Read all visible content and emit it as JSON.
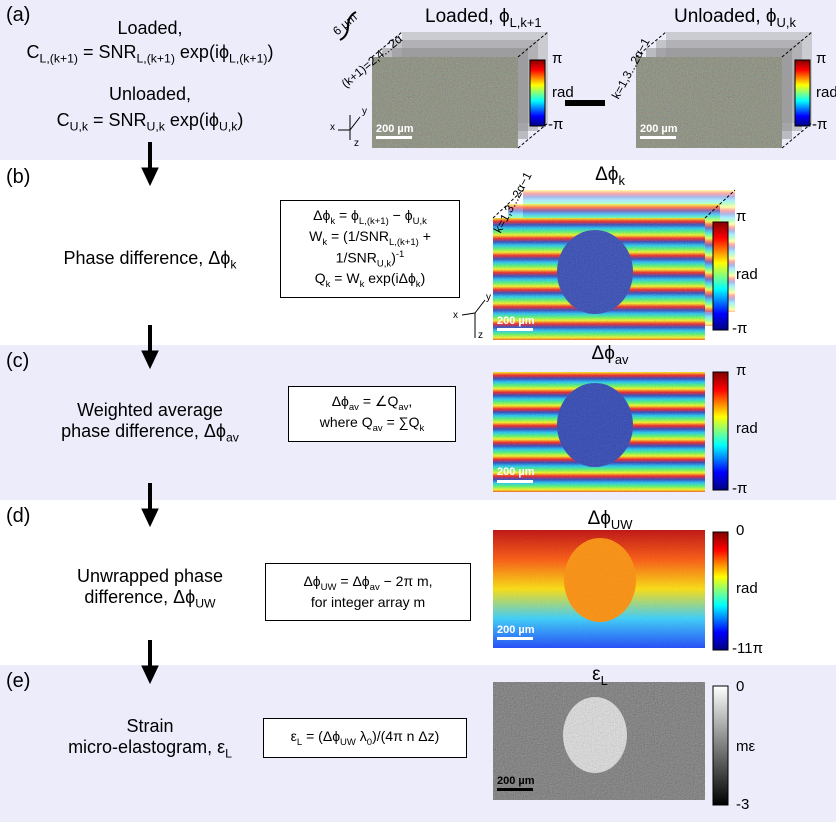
{
  "panel_a": {
    "label": "(a)",
    "loaded_label": "Loaded,",
    "loaded_eq": [
      "C",
      {
        "sub": "L,(k+1)"
      },
      " = SNR",
      {
        "sub": "L,(k+1)"
      },
      " exp(iϕ",
      {
        "sub": "L,(k+1)"
      },
      ")"
    ],
    "unloaded_label": "Unloaded,",
    "unloaded_eq": [
      "C",
      {
        "sub": "U,k"
      },
      " = SNR",
      {
        "sub": "U,k"
      },
      " exp(iϕ",
      {
        "sub": "U,k"
      },
      ")"
    ],
    "depth": "6 µm",
    "loaded_index": "(k+1)=2,4...2α",
    "loaded_title": [
      "Loaded, ϕ",
      {
        "sub": "L,k+1"
      }
    ],
    "unloaded_index": "k=1,3...2α−1",
    "unloaded_title": [
      "Unloaded, ϕ",
      {
        "sub": "U,k"
      }
    ],
    "colorbar": {
      "max": "π",
      "unit": "rad",
      "min": "-π"
    },
    "scale_bar": "200 µm",
    "axes": {
      "x": "x",
      "y": "y",
      "z": "z"
    }
  },
  "panel_b": {
    "label": "(b)",
    "step": [
      [
        "Phase difference, Δϕ",
        {
          "sub": "k"
        }
      ]
    ],
    "formula": [
      [
        "Δϕ",
        {
          "sub": "k"
        },
        " = ϕ",
        {
          "sub": "L,(k+1)"
        },
        " − ϕ",
        {
          "sub": "U,k"
        }
      ],
      [
        "W",
        {
          "sub": "k"
        },
        " = (1/SNR",
        {
          "sub": "L,(k+1)"
        },
        " +"
      ],
      [
        "1/SNR",
        {
          "sub": "U,k"
        },
        ")",
        {
          "sup": "-1"
        }
      ],
      [
        "Q",
        {
          "sub": "k"
        },
        " = W",
        {
          "sub": "k"
        },
        " exp(iΔϕ",
        {
          "sub": "k"
        },
        ")"
      ]
    ],
    "index": "k=1,3...2α−1",
    "image_title": [
      "Δϕ",
      {
        "sub": "k"
      }
    ],
    "colorbar": {
      "max": "π",
      "unit": "rad",
      "min": "-π"
    },
    "scale_bar": "200 µm",
    "axes": {
      "x": "x",
      "y": "y",
      "z": "z"
    }
  },
  "panel_c": {
    "label": "(c)",
    "step": [
      [
        "Weighted average"
      ],
      [
        "phase difference, Δϕ",
        {
          "sub": "av"
        }
      ]
    ],
    "formula": [
      [
        "Δϕ",
        {
          "sub": "av"
        },
        " = ∠Q",
        {
          "sub": "av"
        },
        ","
      ],
      [
        "where Q",
        {
          "sub": "av"
        },
        " = ∑Q",
        {
          "sub": "k"
        }
      ]
    ],
    "image_title": [
      "Δϕ",
      {
        "sub": "av"
      }
    ],
    "colorbar": {
      "max": "π",
      "unit": "rad",
      "min": "-π"
    },
    "scale_bar": "200 µm"
  },
  "panel_d": {
    "label": "(d)",
    "step": [
      [
        "Unwrapped phase"
      ],
      [
        "difference, Δϕ",
        {
          "sub": "UW"
        }
      ]
    ],
    "formula": [
      [
        "Δϕ",
        {
          "sub": "UW"
        },
        " = Δϕ",
        {
          "sub": "av"
        },
        " − 2π m,"
      ],
      [
        "for integer array m"
      ]
    ],
    "image_title": [
      "Δϕ",
      {
        "sub": "UW"
      }
    ],
    "colorbar": {
      "max": "0",
      "unit": "rad",
      "min": "-11π"
    },
    "scale_bar": "200 µm"
  },
  "panel_e": {
    "label": "(e)",
    "step": [
      [
        "Strain"
      ],
      [
        "micro-elastogram, ε",
        {
          "sub": "L"
        }
      ]
    ],
    "formula": [
      [
        "ε",
        {
          "sub": "L"
        },
        " = (Δϕ",
        {
          "sub": "UW"
        },
        " λ",
        {
          "sub": "0"
        },
        ")/(4π n Δz)"
      ]
    ],
    "image_title": [
      "ε",
      {
        "sub": "L"
      }
    ],
    "colorbar": {
      "max": "0",
      "unit": "mε",
      "min": "-3"
    },
    "scale_bar": "200 µm"
  }
}
